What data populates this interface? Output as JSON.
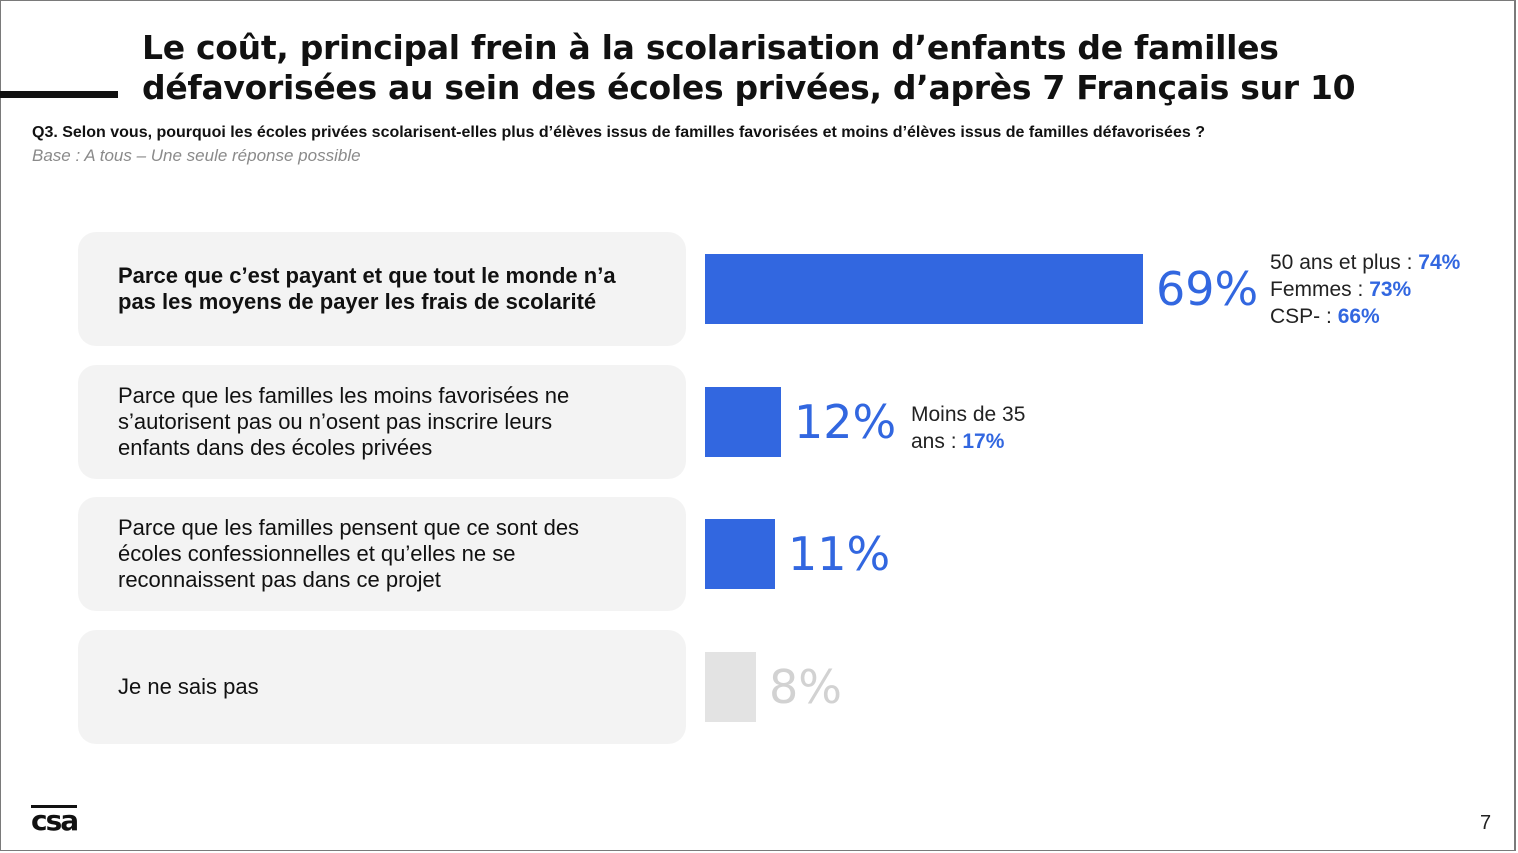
{
  "title": "Le coût, principal frein à la scolarisation d’enfants de familles défavorisées au sein des écoles privées, d’après 7 Français sur 10",
  "question": "Q3. Selon vous, pourquoi les écoles privées scolarisent-elles plus d’élèves issus de familles favorisées et moins d’élèves issus de familles défavorisées ?",
  "base": "Base : A tous – Une seule réponse possible",
  "logo": "csa",
  "page_number": "7",
  "colors": {
    "accent": "#3267e0",
    "muted_bar": "#e3e3e3",
    "muted_text": "#d2d2d2"
  },
  "chart_data": {
    "type": "bar",
    "orientation": "horizontal",
    "categories": [
      "Parce que c’est payant et que tout le monde n’a pas les moyens de payer les frais de scolarité",
      "Parce que les familles les moins favorisées ne s’autorisent pas ou n’osent pas inscrire leurs enfants dans des écoles privées",
      "Parce que les familles pensent que ce sont des écoles confessionnelles et qu’elles ne se reconnaissent pas dans ce projet",
      "Je ne sais pas"
    ],
    "values": [
      69,
      12,
      11,
      8
    ],
    "value_labels": [
      "69%",
      "12%",
      "11%",
      "8%"
    ],
    "unit": "%",
    "xlim": [
      0,
      100
    ],
    "grid": false,
    "annotations": [
      [
        {
          "label": "50 ans et plus : ",
          "value": "74%"
        },
        {
          "label": "Femmes : ",
          "value": "73%"
        },
        {
          "label": "CSP- : ",
          "value": "66%"
        }
      ],
      [
        {
          "label": "Moins de 35",
          "value": ""
        },
        {
          "label": "ans : ",
          "value": "17%"
        }
      ],
      [],
      []
    ]
  }
}
